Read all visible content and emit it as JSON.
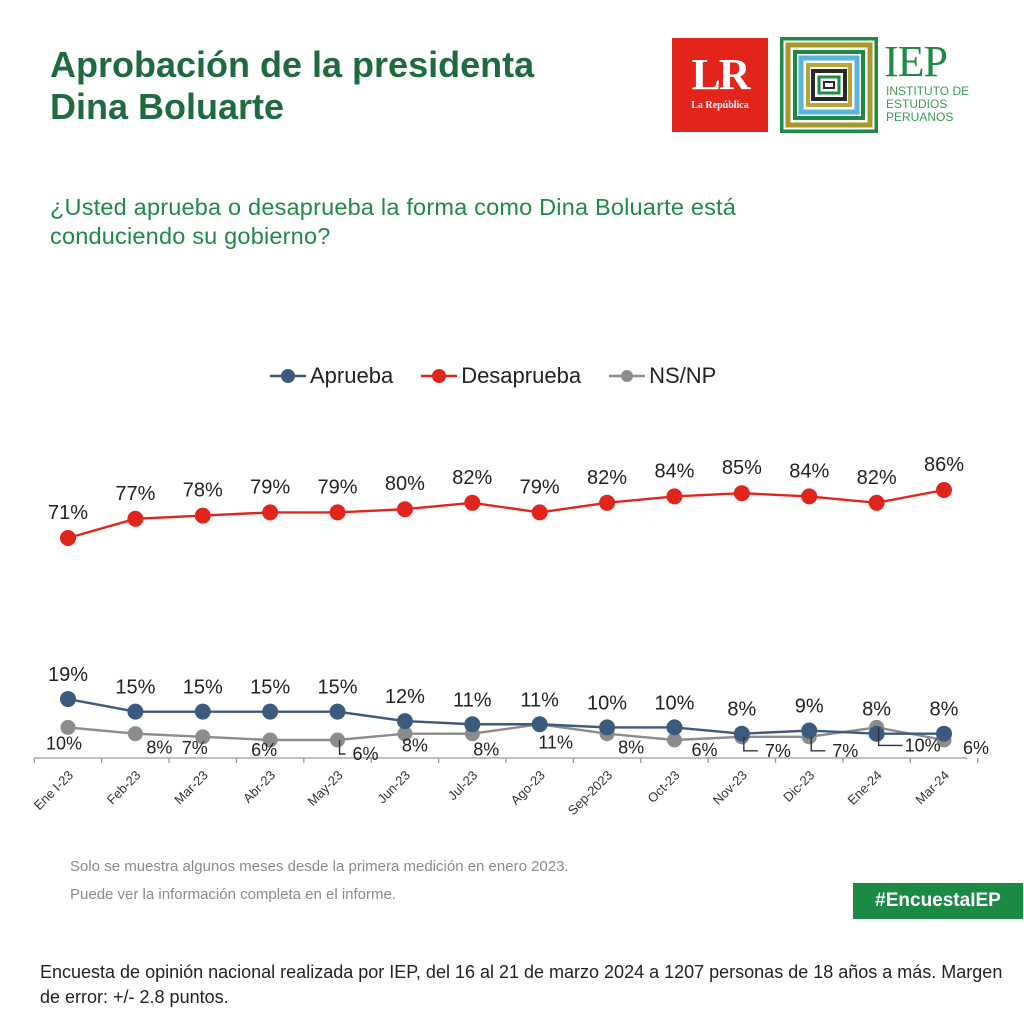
{
  "header": {
    "title_line1": "Aprobación de la presidenta",
    "title_line2": "Dina Boluarte",
    "question_line1": "¿Usted aprueba o desaprueba la forma como Dina Boluarte está",
    "question_line2": "conduciendo su gobierno?"
  },
  "logos": {
    "lr_text": "LR",
    "lr_subtext": "La República",
    "iep_text": "IEP",
    "iep_sub_line1": "INSTITUTO DE",
    "iep_sub_line2": "ESTUDIOS",
    "iep_sub_line3": "PERUANOS"
  },
  "colors": {
    "title_green": "#1d6b3e",
    "accent_green": "#1a8a45",
    "aprueba": "#3c5a7d",
    "desaprueba": "#e0251d",
    "nsnp": "#8c8c8c"
  },
  "chart_data": {
    "type": "line",
    "title": "Aprobación de la presidenta Dina Boluarte",
    "xlabel": "",
    "ylabel": "",
    "grid": false,
    "legend_position": "top",
    "categories": [
      "Ene I-23",
      "Feb-23",
      "Mar-23",
      "Abr-23",
      "May-23",
      "Jun-23",
      "Jul-23",
      "Ago-23",
      "Sep-2023",
      "Oct-23",
      "Nov-23",
      "Dic-23",
      "Ene-24",
      "Mar-24"
    ],
    "series": [
      {
        "name": "Aprueba",
        "color": "#3c5a7d",
        "values": [
          19,
          15,
          15,
          15,
          15,
          12,
          11,
          11,
          10,
          10,
          8,
          9,
          8,
          8
        ],
        "labels": [
          "19%",
          "15%",
          "15%",
          "15%",
          "15%",
          "12%",
          "11%",
          "11%",
          "10%",
          "10%",
          "8%",
          "9%",
          "8%",
          "8%"
        ]
      },
      {
        "name": "Desaprueba",
        "color": "#e0251d",
        "values": [
          71,
          77,
          78,
          79,
          79,
          80,
          82,
          79,
          82,
          84,
          85,
          84,
          82,
          86
        ],
        "labels": [
          "71%",
          "77%",
          "78%",
          "79%",
          "79%",
          "80%",
          "82%",
          "79%",
          "82%",
          "84%",
          "85%",
          "84%",
          "82%",
          "86%"
        ]
      },
      {
        "name": "NS/NP",
        "color": "#8c8c8c",
        "values": [
          10,
          8,
          7,
          6,
          6,
          8,
          8,
          11,
          8,
          6,
          7,
          7,
          10,
          6
        ],
        "labels": [
          "10%",
          "8%",
          "7%",
          "6%",
          "6%",
          "8%",
          "8%",
          "11%",
          "8%",
          "6%",
          "7%",
          "7%",
          "10%",
          "6%"
        ]
      }
    ]
  },
  "notes": {
    "line1": "Solo se muestra algunos meses desde la primera medición en enero 2023.",
    "line2": "Puede ver la información completa en el informe."
  },
  "hashtag": "#EncuestaIEP",
  "survey_info": "Encuesta de opinión nacional realizada por IEP, del 16 al 21 de marzo 2024 a 1207 personas de 18 años a más. Margen de error: +/- 2.8 puntos."
}
